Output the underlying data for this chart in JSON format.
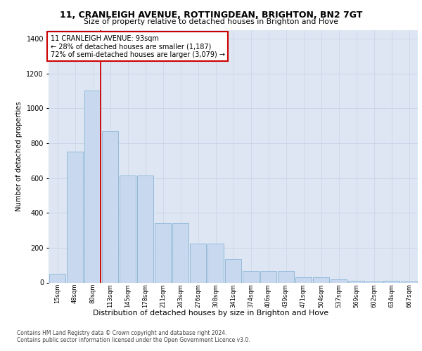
{
  "title1": "11, CRANLEIGH AVENUE, ROTTINGDEAN, BRIGHTON, BN2 7GT",
  "title2": "Size of property relative to detached houses in Brighton and Hove",
  "xlabel": "Distribution of detached houses by size in Brighton and Hove",
  "ylabel": "Number of detached properties",
  "footnote1": "Contains HM Land Registry data © Crown copyright and database right 2024.",
  "footnote2": "Contains public sector information licensed under the Open Government Licence v3.0.",
  "annotation_line1": "11 CRANLEIGH AVENUE: 93sqm",
  "annotation_line2": "← 28% of detached houses are smaller (1,187)",
  "annotation_line3": "72% of semi-detached houses are larger (3,079) →",
  "bar_labels": [
    "15sqm",
    "48sqm",
    "80sqm",
    "113sqm",
    "145sqm",
    "178sqm",
    "211sqm",
    "243sqm",
    "276sqm",
    "308sqm",
    "341sqm",
    "374sqm",
    "406sqm",
    "439sqm",
    "471sqm",
    "504sqm",
    "537sqm",
    "569sqm",
    "602sqm",
    "634sqm",
    "667sqm"
  ],
  "bar_values": [
    50,
    750,
    1100,
    870,
    615,
    615,
    340,
    340,
    225,
    225,
    135,
    65,
    65,
    65,
    30,
    30,
    20,
    10,
    5,
    10,
    5
  ],
  "bar_color": "#c8d9ef",
  "bar_edge_color": "#8ab4d8",
  "ylim": [
    0,
    1450
  ],
  "yticks": [
    0,
    200,
    400,
    600,
    800,
    1000,
    1200,
    1400
  ],
  "grid_color": "#c8d4e8",
  "background_color": "#dde6f2",
  "annotation_box_color": "#ffffff",
  "annotation_box_edge": "#cc0000",
  "red_line_color": "#cc0000",
  "red_line_bar_index": 2
}
